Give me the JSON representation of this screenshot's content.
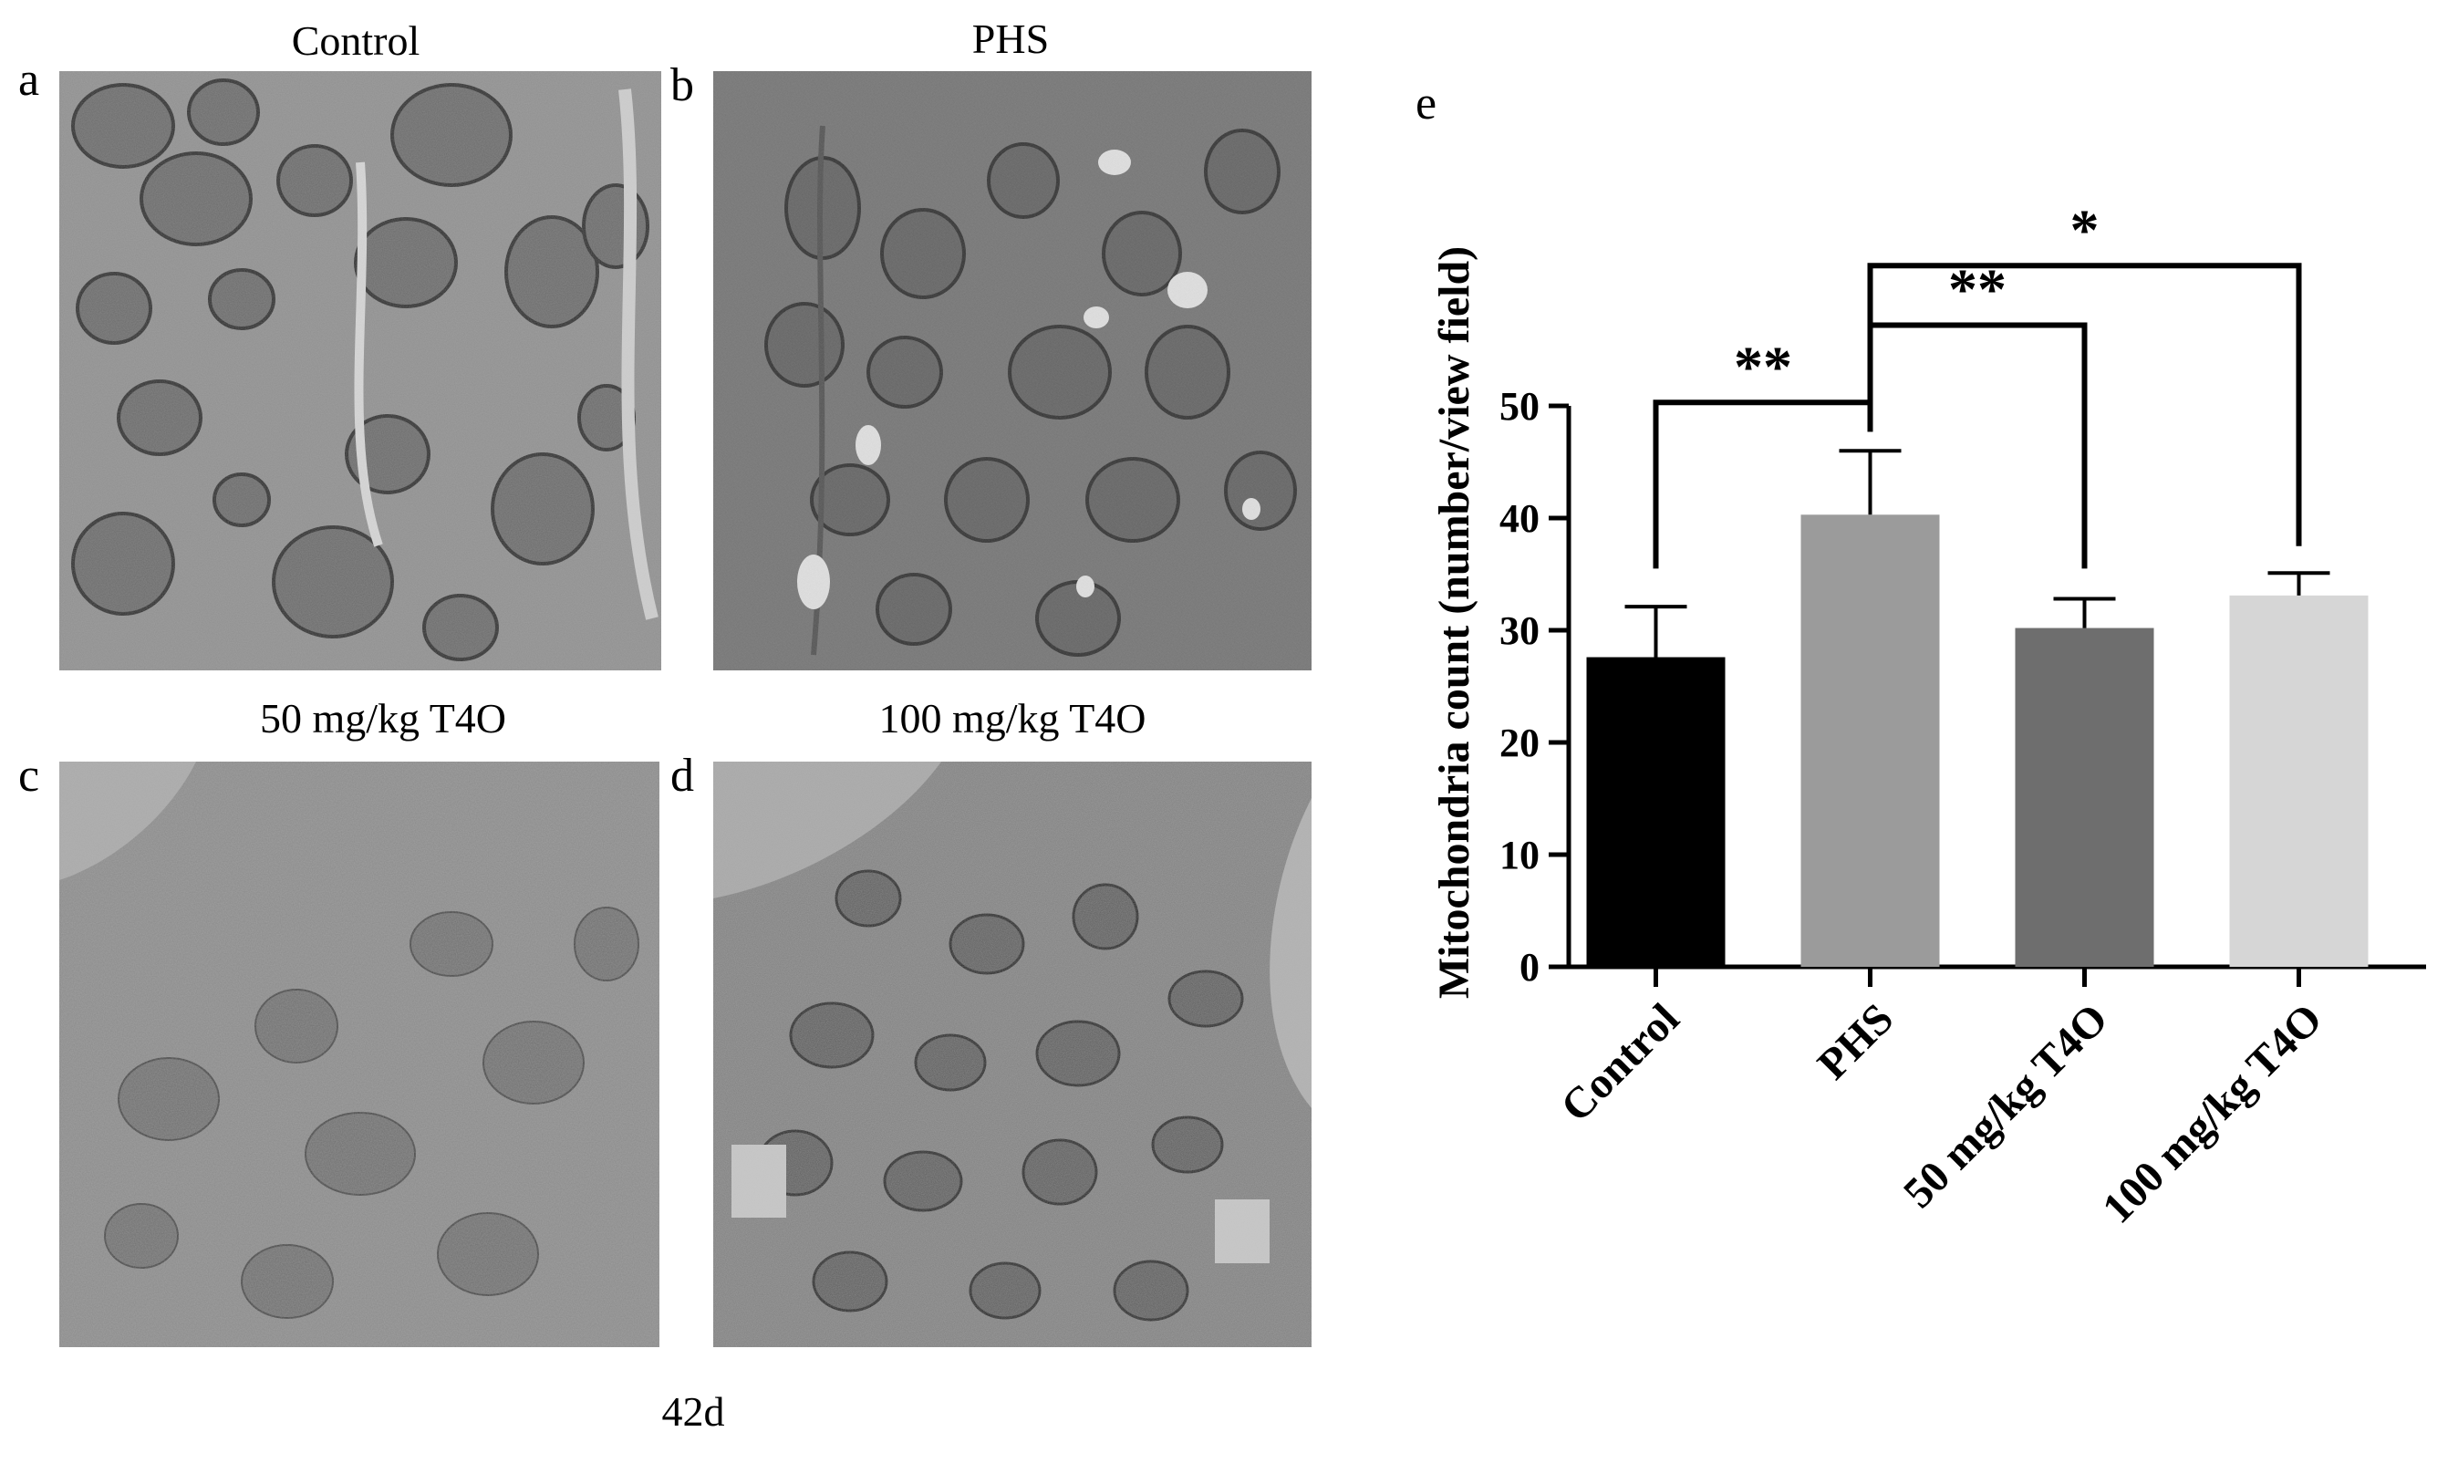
{
  "figure": {
    "bottom_label": "42d",
    "panels": [
      {
        "letter": "a",
        "title": "Control"
      },
      {
        "letter": "b",
        "title": "PHS"
      },
      {
        "letter": "c",
        "title": "50 mg/kg T4O"
      },
      {
        "letter": "d",
        "title": "100 mg/kg T4O"
      },
      {
        "letter": "e",
        "title": ""
      }
    ]
  },
  "chart_data": {
    "type": "bar",
    "panel_letter": "e",
    "categories": [
      "Control",
      "PHS",
      "50 mg/kg T4O",
      "100 mg/kg T4O"
    ],
    "values": [
      27.6,
      40.3,
      30.2,
      33.1
    ],
    "errors": [
      4.5,
      5.7,
      2.6,
      2.0
    ],
    "colors": [
      "#000000",
      "#9b9b9b",
      "#6e6e6e",
      "#d6d6d6"
    ],
    "ylabel": "Mitochondria count (number/view field)",
    "xlabel": "",
    "ylim": [
      0,
      50
    ],
    "yticks": [
      0,
      10,
      20,
      30,
      40,
      50
    ],
    "grid": false,
    "significance": [
      {
        "from": "Control",
        "to": "PHS",
        "label": "**"
      },
      {
        "from": "PHS",
        "to": "50 mg/kg T4O",
        "label": "**"
      },
      {
        "from": "PHS",
        "to": "100 mg/kg T4O",
        "label": "*"
      }
    ]
  }
}
